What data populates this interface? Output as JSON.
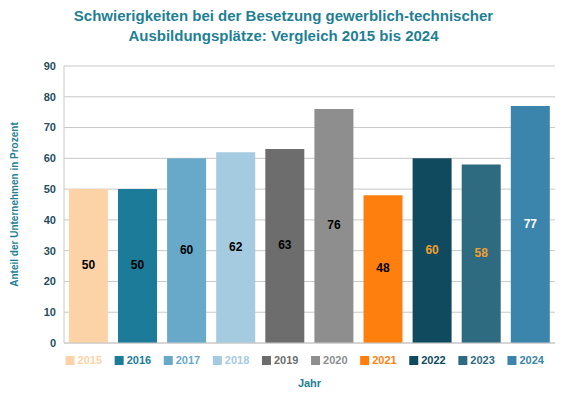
{
  "chart_data": {
    "type": "bar",
    "title": "Schwierigkeiten bei der Besetzung gewerblich-technischer Ausbildungsplätze: Vergleich 2015 bis 2024",
    "x_label": "Jahr",
    "y_label": "Anteil der Unternehmen in Prozent",
    "categories": [
      "2015",
      "2016",
      "2017",
      "2018",
      "2019",
      "2020",
      "2021",
      "2022",
      "2023",
      "2024"
    ],
    "values": [
      50,
      50,
      60,
      62,
      63,
      76,
      48,
      60,
      58,
      77
    ],
    "colors": [
      "#fcd3a6",
      "#1b7b98",
      "#68a9c9",
      "#a5cbe0",
      "#6d6d6d",
      "#8e8e8e",
      "#ff7f0e",
      "#0f4a5f",
      "#2f6b80",
      "#3b84ab"
    ],
    "ylim": [
      0,
      90
    ],
    "yticks": [
      0,
      10,
      20,
      30,
      40,
      50,
      60,
      70,
      80,
      90
    ],
    "grid": true,
    "data_labels": true
  }
}
